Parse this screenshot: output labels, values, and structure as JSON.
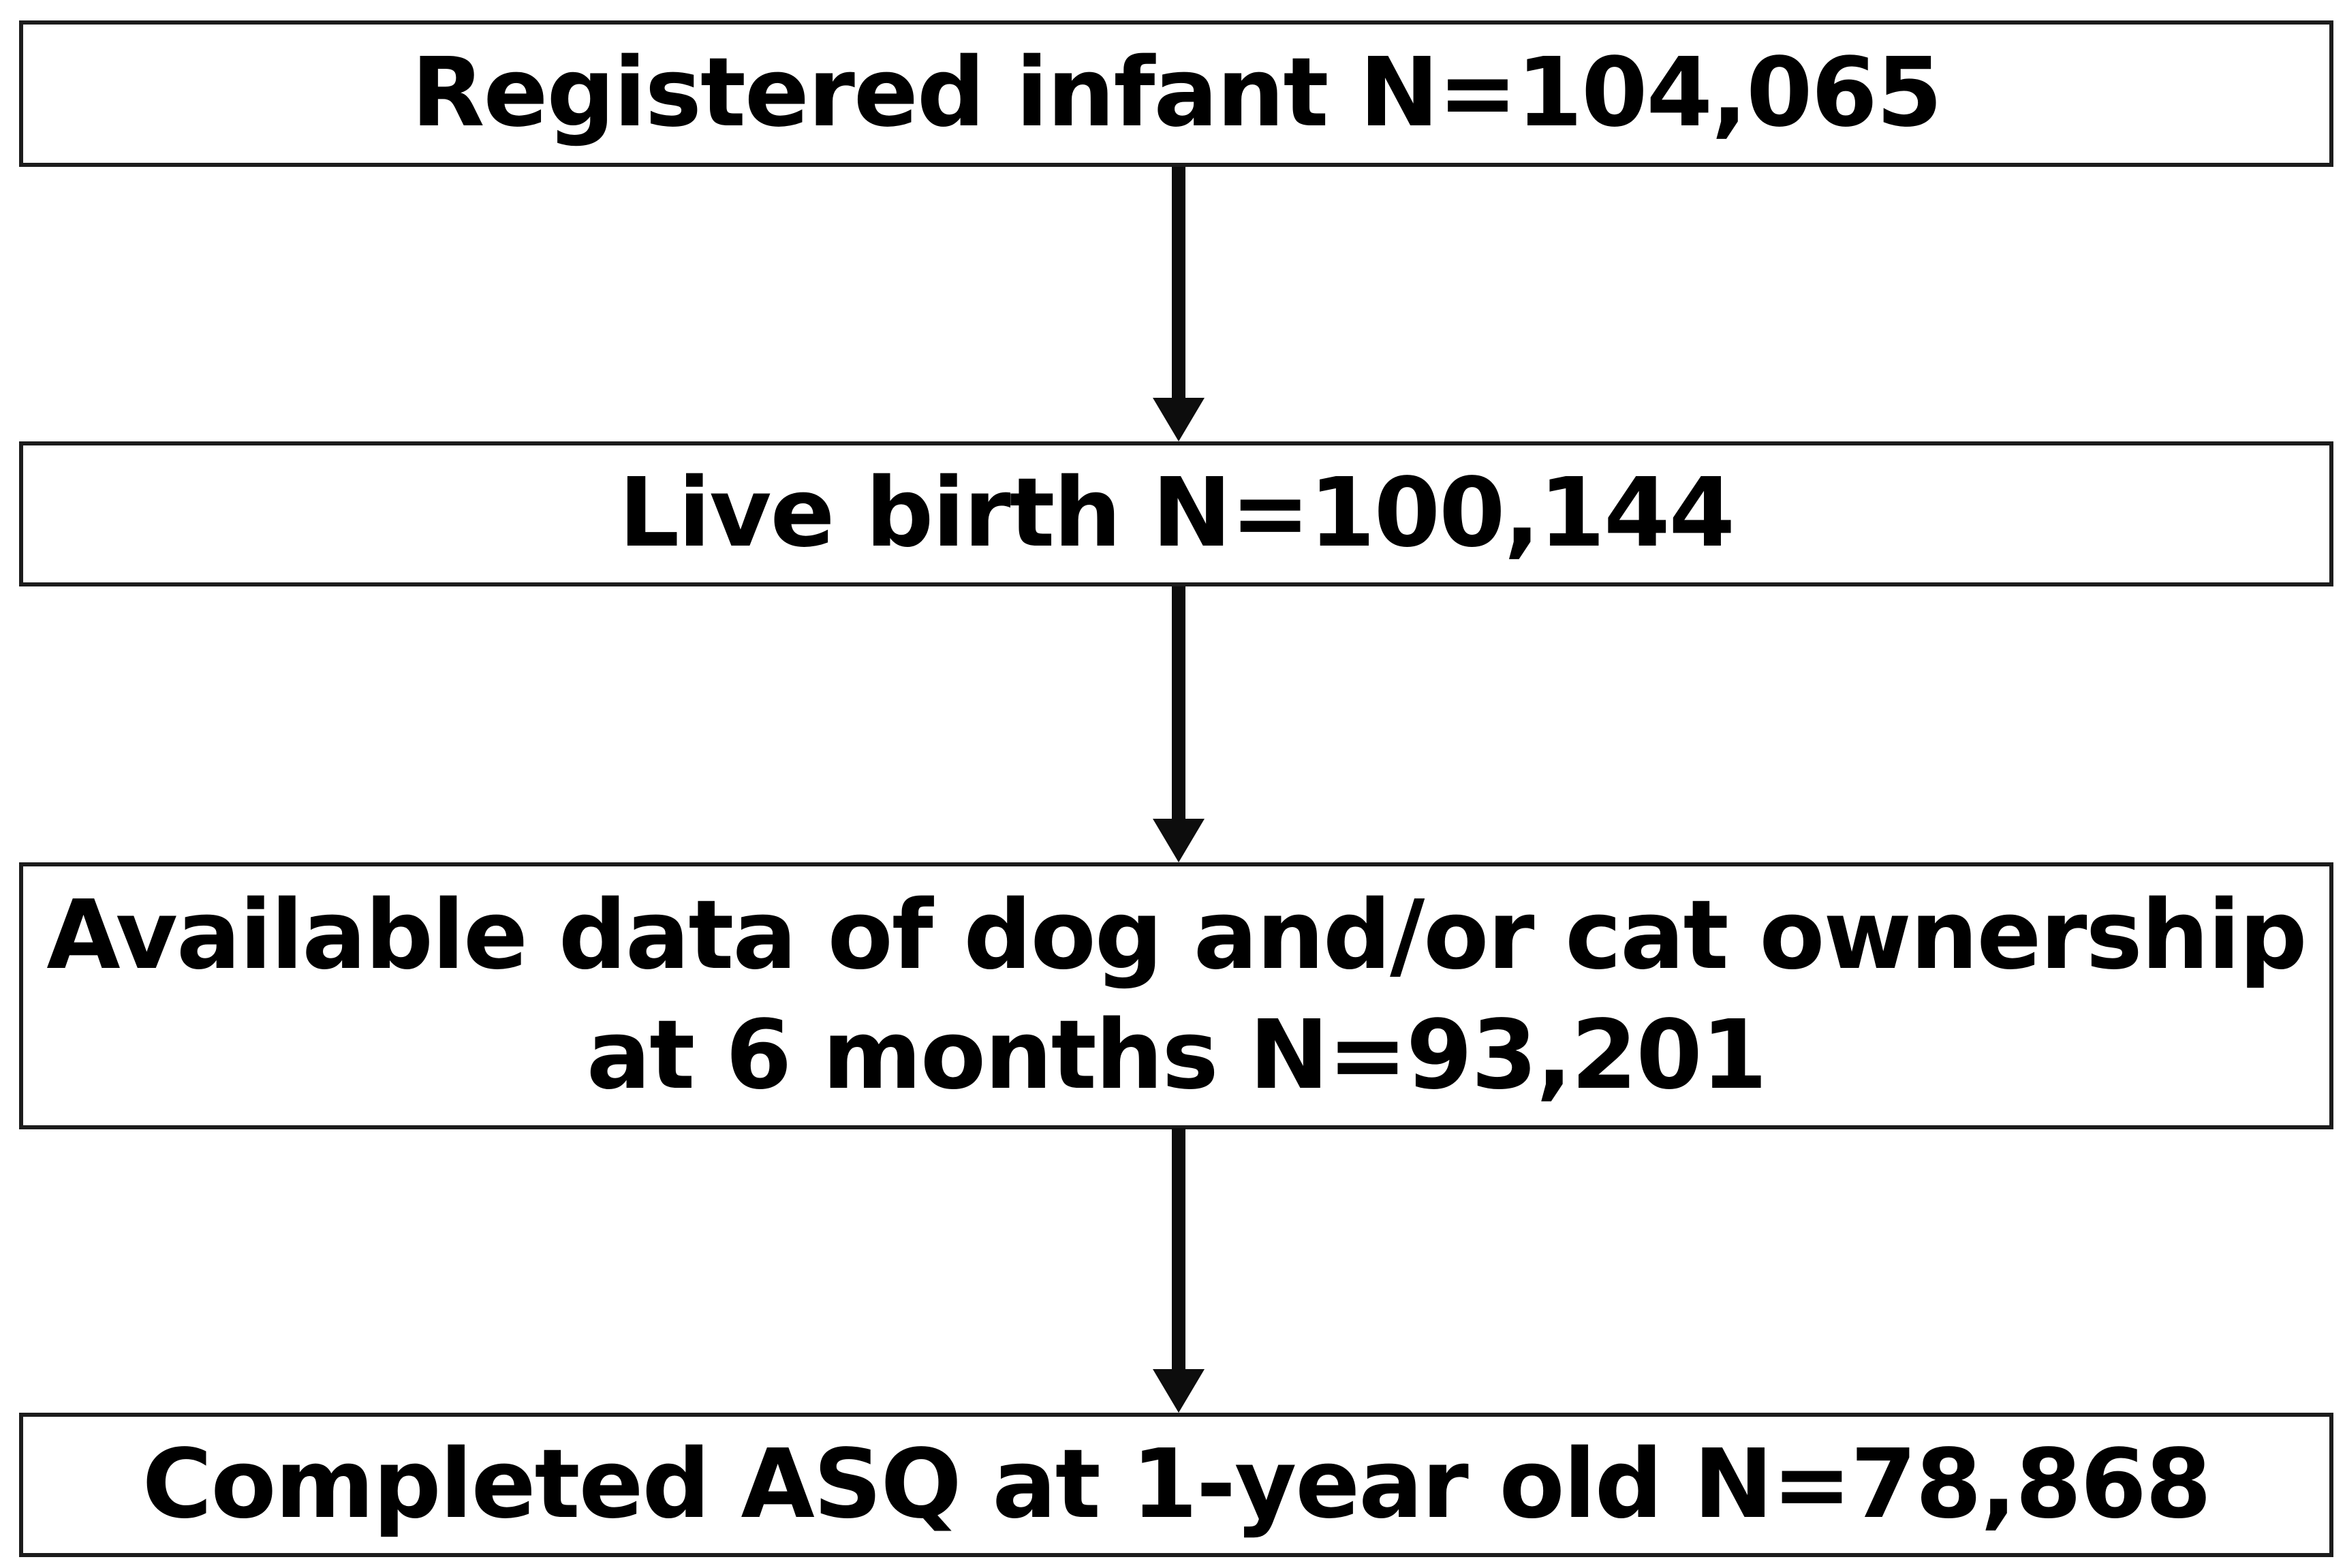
{
  "figure": {
    "type": "flowchart",
    "orientation": "top-down",
    "colors": {
      "background": "#ffffff",
      "box_fill": "#ffffff",
      "box_border": "#1c1c1c",
      "text": "#000000",
      "arrow": "#0d0d0d"
    },
    "nodes": [
      {
        "id": "registered-infant",
        "n": 104065,
        "lines": [
          "Registered infant N=104,065"
        ]
      },
      {
        "id": "live-birth",
        "n": 100144,
        "lines": [
          "Live birth N=100,144"
        ]
      },
      {
        "id": "pet-ownership-data",
        "n": 93201,
        "lines": [
          "Available data of dog and/or cat ownership",
          "at 6 months N=93,201"
        ]
      },
      {
        "id": "completed-asq",
        "n": 78868,
        "lines": [
          "Completed ASQ at 1-year old N=78,868"
        ]
      }
    ],
    "edges": [
      {
        "from": "registered-infant",
        "to": "live-birth"
      },
      {
        "from": "live-birth",
        "to": "pet-ownership-data"
      },
      {
        "from": "pet-ownership-data",
        "to": "completed-asq"
      }
    ]
  }
}
